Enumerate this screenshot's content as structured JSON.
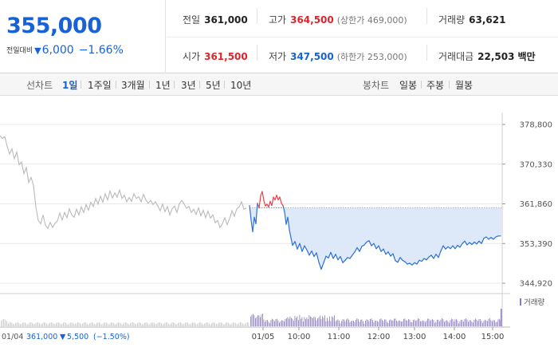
{
  "quote": {
    "price": "355,000",
    "change_label": "전일대비",
    "change_arrow": "▼",
    "change_value": "6,000",
    "change_pct": "−1.66%",
    "prev_close_label": "전일",
    "prev_close": "361,000",
    "high_label": "고가",
    "high": "364,500",
    "upper_limit": "(상한가 469,000)",
    "volume_label": "거래량",
    "volume": "63,621",
    "open_label": "시가",
    "open": "361,500",
    "low_label": "저가",
    "low": "347,500",
    "lower_limit": "(하한가 253,000)",
    "amount_label": "거래대금",
    "amount": "22,503",
    "amount_unit": "백만"
  },
  "toolbar": {
    "line_label": "선차트",
    "line_periods": [
      "1일",
      "1주일",
      "3개월",
      "1년",
      "3년",
      "5년",
      "10년"
    ],
    "active_period": "1일",
    "candle_label": "봉차트",
    "candle_periods": [
      "일봉",
      "주봉",
      "월봉"
    ]
  },
  "chart_data": {
    "type": "line",
    "y_ticks": [
      "378,800",
      "370,330",
      "361,860",
      "353,390",
      "344,920"
    ],
    "ylim": [
      344920,
      378800
    ],
    "grid": true,
    "reference_line": 361000,
    "x_ticks": [
      "01/05",
      "10:00",
      "11:00",
      "12:00",
      "13:00",
      "14:00",
      "15:00"
    ],
    "prev_day": {
      "label": "01/04",
      "close": "361,000",
      "change_arrow": "▼",
      "change": "5,500",
      "change_pct": "(−1.50%)",
      "points": [
        [
          0,
          376400
        ],
        [
          3,
          375800
        ],
        [
          6,
          376200
        ],
        [
          9,
          374100
        ],
        [
          12,
          372500
        ],
        [
          15,
          373600
        ],
        [
          18,
          371500
        ],
        [
          21,
          372900
        ],
        [
          24,
          370200
        ],
        [
          27,
          370800
        ],
        [
          30,
          368300
        ],
        [
          33,
          369600
        ],
        [
          36,
          366400
        ],
        [
          39,
          367500
        ],
        [
          42,
          365800
        ],
        [
          45,
          361200
        ],
        [
          48,
          358300
        ],
        [
          51,
          357600
        ],
        [
          54,
          359500
        ],
        [
          57,
          357300
        ],
        [
          60,
          356600
        ],
        [
          63,
          357900
        ],
        [
          66,
          356800
        ],
        [
          69,
          357700
        ],
        [
          72,
          358200
        ],
        [
          75,
          359900
        ],
        [
          78,
          358400
        ],
        [
          81,
          360000
        ],
        [
          84,
          358900
        ],
        [
          87,
          360800
        ],
        [
          90,
          359500
        ],
        [
          93,
          359000
        ],
        [
          96,
          360700
        ],
        [
          99,
          359500
        ],
        [
          102,
          361200
        ],
        [
          105,
          360000
        ],
        [
          108,
          361700
        ],
        [
          111,
          360500
        ],
        [
          114,
          362200
        ],
        [
          117,
          361300
        ],
        [
          120,
          363000
        ],
        [
          123,
          361800
        ],
        [
          126,
          363500
        ],
        [
          129,
          362200
        ],
        [
          132,
          364000
        ],
        [
          135,
          362700
        ],
        [
          138,
          364600
        ],
        [
          141,
          363100
        ],
        [
          144,
          364200
        ],
        [
          147,
          363300
        ],
        [
          150,
          364800
        ],
        [
          153,
          363000
        ],
        [
          156,
          363700
        ],
        [
          159,
          362300
        ],
        [
          162,
          363200
        ],
        [
          165,
          362400
        ],
        [
          168,
          364000
        ],
        [
          171,
          363000
        ],
        [
          174,
          363400
        ],
        [
          177,
          362300
        ],
        [
          180,
          363900
        ],
        [
          183,
          362700
        ],
        [
          186,
          362000
        ],
        [
          189,
          362600
        ],
        [
          192,
          361700
        ],
        [
          195,
          362300
        ],
        [
          198,
          361400
        ],
        [
          201,
          360400
        ],
        [
          204,
          361800
        ],
        [
          207,
          360200
        ],
        [
          210,
          361300
        ],
        [
          213,
          359500
        ],
        [
          216,
          360800
        ],
        [
          219,
          361400
        ],
        [
          222,
          360000
        ],
        [
          225,
          361900
        ],
        [
          228,
          362600
        ],
        [
          231,
          361800
        ],
        [
          234,
          360900
        ],
        [
          237,
          361300
        ],
        [
          240,
          360000
        ],
        [
          243,
          360700
        ],
        [
          246,
          359600
        ],
        [
          249,
          361000
        ],
        [
          252,
          359300
        ],
        [
          255,
          360500
        ],
        [
          258,
          358900
        ],
        [
          261,
          360300
        ],
        [
          264,
          358800
        ],
        [
          267,
          359500
        ],
        [
          270,
          357800
        ],
        [
          273,
          358300
        ],
        [
          276,
          356800
        ],
        [
          279,
          357600
        ],
        [
          282,
          358900
        ],
        [
          285,
          357400
        ],
        [
          288,
          358700
        ],
        [
          291,
          360400
        ],
        [
          294,
          359200
        ],
        [
          297,
          360800
        ],
        [
          300,
          361200
        ],
        [
          303,
          362300
        ],
        [
          306,
          360700
        ],
        [
          309,
          361000
        ]
      ]
    },
    "series": [
      {
        "points": [
          [
            313,
            361500
          ],
          [
            315,
            358400
          ],
          [
            317,
            355900
          ],
          [
            319,
            359000
          ],
          [
            321,
            357600
          ],
          [
            323,
            362000
          ],
          [
            325,
            361000
          ],
          [
            327,
            363600
          ],
          [
            329,
            364500
          ],
          [
            331,
            362500
          ],
          [
            333,
            361400
          ],
          [
            335,
            361800
          ],
          [
            337,
            361200
          ],
          [
            339,
            362400
          ],
          [
            341,
            361500
          ],
          [
            343,
            363300
          ],
          [
            345,
            362700
          ],
          [
            347,
            363700
          ],
          [
            349,
            362700
          ],
          [
            351,
            363300
          ],
          [
            353,
            362000
          ],
          [
            355,
            361500
          ],
          [
            357,
            360100
          ],
          [
            359,
            357500
          ],
          [
            361,
            359000
          ],
          [
            363,
            356300
          ],
          [
            365,
            354600
          ],
          [
            367,
            353000
          ],
          [
            370,
            353800
          ],
          [
            373,
            352200
          ],
          [
            376,
            353400
          ],
          [
            379,
            351700
          ],
          [
            382,
            352900
          ],
          [
            385,
            352000
          ],
          [
            388,
            350900
          ],
          [
            391,
            351800
          ],
          [
            394,
            350600
          ],
          [
            397,
            351400
          ],
          [
            400,
            349400
          ],
          [
            403,
            347900
          ],
          [
            406,
            349300
          ],
          [
            409,
            350700
          ],
          [
            412,
            350300
          ],
          [
            415,
            351500
          ],
          [
            418,
            350200
          ],
          [
            421,
            351100
          ],
          [
            424,
            349900
          ],
          [
            427,
            350600
          ],
          [
            430,
            349300
          ],
          [
            433,
            349800
          ],
          [
            436,
            350400
          ],
          [
            439,
            350200
          ],
          [
            442,
            350900
          ],
          [
            445,
            351600
          ],
          [
            448,
            352500
          ],
          [
            451,
            351700
          ],
          [
            454,
            352800
          ],
          [
            457,
            353100
          ],
          [
            460,
            353700
          ],
          [
            463,
            354000
          ],
          [
            466,
            352900
          ],
          [
            469,
            353400
          ],
          [
            472,
            352300
          ],
          [
            475,
            352900
          ],
          [
            478,
            351700
          ],
          [
            481,
            352200
          ],
          [
            484,
            351100
          ],
          [
            487,
            351600
          ],
          [
            490,
            350700
          ],
          [
            493,
            351200
          ],
          [
            496,
            349700
          ],
          [
            499,
            349400
          ],
          [
            502,
            350400
          ],
          [
            505,
            349800
          ],
          [
            508,
            349500
          ],
          [
            511,
            349000
          ],
          [
            514,
            349200
          ],
          [
            517,
            348800
          ],
          [
            520,
            349300
          ],
          [
            523,
            349000
          ],
          [
            526,
            349800
          ],
          [
            529,
            349600
          ],
          [
            532,
            350200
          ],
          [
            535,
            349900
          ],
          [
            538,
            350500
          ],
          [
            541,
            350900
          ],
          [
            544,
            350200
          ],
          [
            547,
            351100
          ],
          [
            550,
            350400
          ],
          [
            553,
            351800
          ],
          [
            556,
            352900
          ],
          [
            559,
            352200
          ],
          [
            562,
            352700
          ],
          [
            565,
            352300
          ],
          [
            568,
            352900
          ],
          [
            571,
            352300
          ],
          [
            574,
            353000
          ],
          [
            577,
            352600
          ],
          [
            580,
            353400
          ],
          [
            583,
            353900
          ],
          [
            586,
            353100
          ],
          [
            589,
            353600
          ],
          [
            592,
            353200
          ],
          [
            595,
            353700
          ],
          [
            598,
            353300
          ],
          [
            601,
            353900
          ],
          [
            604,
            353400
          ],
          [
            607,
            354500
          ],
          [
            610,
            354800
          ],
          [
            613,
            354300
          ],
          [
            616,
            354700
          ],
          [
            619,
            354300
          ],
          [
            622,
            354800
          ],
          [
            625,
            355000
          ],
          [
            628,
            355000
          ]
        ]
      }
    ],
    "volume_label": "거래량"
  }
}
